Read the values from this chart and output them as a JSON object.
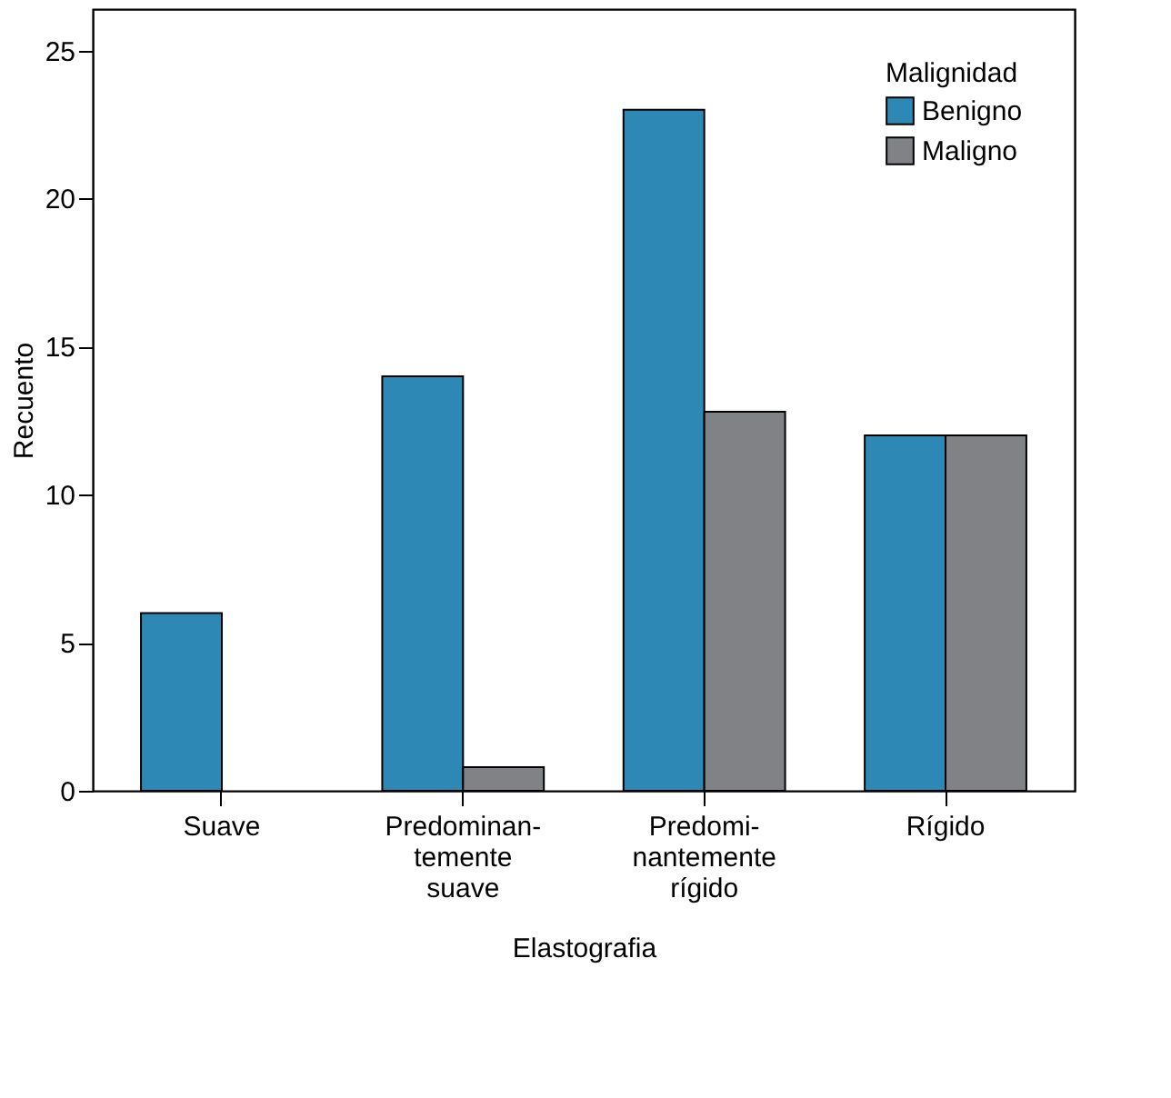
{
  "chart_data": {
    "type": "bar",
    "categories": [
      "Suave",
      "Predominan-\ntemente\nsuave",
      "Predomi-\nnantemente\nrígido",
      "Rígido"
    ],
    "series": [
      {
        "name": "Benigno",
        "color": "#2e88b5",
        "values": [
          6,
          14,
          23,
          12
        ]
      },
      {
        "name": "Maligno",
        "color": "#818286",
        "values": [
          null,
          0.8,
          12.8,
          12
        ]
      }
    ],
    "xlabel": "Elastografia",
    "ylabel": "Recuento",
    "legend_title": "Malignidad",
    "ylim": [
      0,
      26.4
    ],
    "yticks": [
      0,
      5,
      10,
      15,
      20,
      25
    ],
    "grid": false,
    "legend": "top right"
  }
}
